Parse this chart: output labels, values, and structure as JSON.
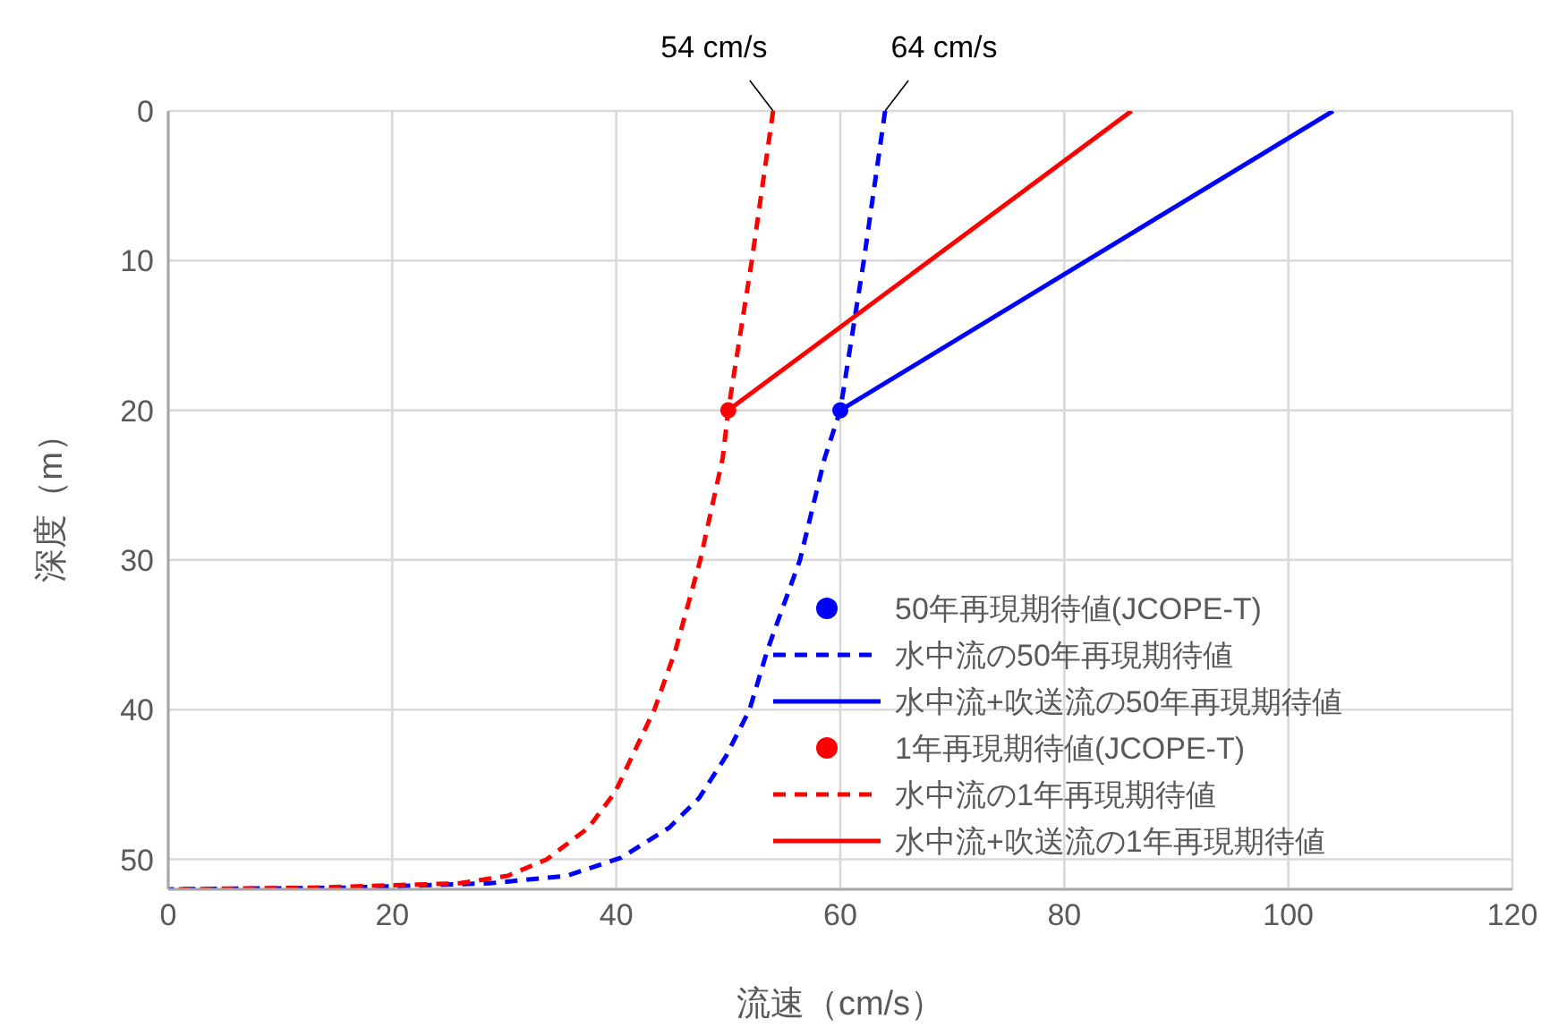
{
  "chart_data": {
    "type": "line",
    "xlabel": "流速（cm/s）",
    "ylabel": "深度（m）",
    "xlim": [
      0,
      120
    ],
    "xticks": [
      0,
      20,
      40,
      60,
      80,
      100,
      120
    ],
    "ylim": [
      52,
      0
    ],
    "yticks": [
      0,
      10,
      20,
      30,
      40,
      50
    ],
    "grid": true,
    "legend": "bottom right",
    "annotations": [
      {
        "text": "54 cm/s",
        "x": 54,
        "y": 0
      },
      {
        "text": "64 cm/s",
        "x": 64,
        "y": 0
      }
    ],
    "series": [
      {
        "name": "50年再現期待値(JCOPE-T)",
        "type": "scatter",
        "marker": "circle",
        "color": "#0000ff",
        "x": [
          60
        ],
        "values": [
          20
        ]
      },
      {
        "name": "水中流の50年再現期待値",
        "line_style": "dashed",
        "color": "#0000ff",
        "x": [
          64,
          62.1,
          60,
          58.6,
          56.4,
          53.5,
          51.9,
          49.8,
          47.4,
          44.7,
          40.4,
          35.6,
          28.7,
          15.4,
          0
        ],
        "values": [
          0,
          10,
          20,
          23.2,
          30,
          36,
          40,
          43.1,
          45.9,
          47.9,
          49.9,
          51.1,
          51.6,
          51.9,
          52
        ]
      },
      {
        "name": "水中流+吹送流の50年再現期待値",
        "line_style": "solid",
        "color": "#0000ff",
        "x": [
          60,
          104
        ],
        "values": [
          20,
          0
        ]
      },
      {
        "name": "1年再現期待値(JCOPE-T)",
        "type": "scatter",
        "marker": "circle",
        "color": "#ff0000",
        "x": [
          50
        ],
        "values": [
          20
        ]
      },
      {
        "name": "水中流の1年再現期待値",
        "line_style": "dashed",
        "color": "#ff0000",
        "x": [
          54,
          52.1,
          50,
          49.5,
          47.5,
          45.3,
          43.4,
          39.9,
          37.5,
          33.8,
          30.3,
          26,
          12.7,
          0
        ],
        "values": [
          0,
          10,
          20,
          23.2,
          30,
          36,
          40,
          45.5,
          47.9,
          50,
          51.1,
          51.6,
          51.9,
          52
        ]
      },
      {
        "name": "水中流+吹送流の1年再現期待値",
        "line_style": "solid",
        "color": "#ff0000",
        "x": [
          50,
          86
        ],
        "values": [
          20,
          0
        ]
      }
    ]
  }
}
